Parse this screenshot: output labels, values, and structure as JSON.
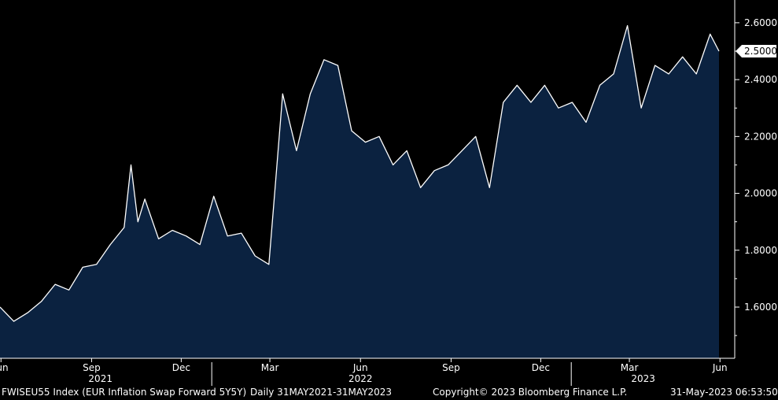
{
  "chart_data": {
    "type": "area",
    "title": "",
    "ylim": [
      1.42,
      2.68
    ],
    "y_ticks": [
      "1.6000",
      "1.8000",
      "2.0000",
      "2.2000",
      "2.4000",
      "2.6000"
    ],
    "last_value_label": "2.5000",
    "month_ticks": [
      "Jun",
      "Sep",
      "Dec",
      "Mar",
      "Jun",
      "Sep",
      "Dec",
      "Mar",
      "Jun"
    ],
    "year_labels": [
      "2021",
      "2022",
      "2023"
    ],
    "colors": {
      "area_fill": "#0b2240",
      "line": "#ffffff",
      "background": "#000000"
    },
    "grid": false,
    "series": [
      {
        "x": [
          "2021-05-31",
          "2021-06-14",
          "2021-06-28",
          "2021-07-12",
          "2021-07-26",
          "2021-08-09",
          "2021-08-23",
          "2021-09-06",
          "2021-09-20",
          "2021-10-04",
          "2021-10-11",
          "2021-10-18",
          "2021-10-25",
          "2021-11-08",
          "2021-11-22",
          "2021-12-06",
          "2021-12-20",
          "2022-01-03",
          "2022-01-17",
          "2022-01-31",
          "2022-02-14",
          "2022-02-28",
          "2022-03-07",
          "2022-03-14",
          "2022-03-28",
          "2022-04-11",
          "2022-04-25",
          "2022-05-09",
          "2022-05-23",
          "2022-06-06",
          "2022-06-20",
          "2022-07-04",
          "2022-07-18",
          "2022-08-01",
          "2022-08-15",
          "2022-08-29",
          "2022-09-12",
          "2022-09-26",
          "2022-10-10",
          "2022-10-24",
          "2022-11-07",
          "2022-11-21",
          "2022-12-05",
          "2022-12-19",
          "2023-01-02",
          "2023-01-16",
          "2023-01-30",
          "2023-02-13",
          "2023-02-27",
          "2023-03-13",
          "2023-03-27",
          "2023-04-10",
          "2023-04-24",
          "2023-05-08",
          "2023-05-22",
          "2023-05-31"
        ],
        "values": [
          1.6,
          1.55,
          1.58,
          1.62,
          1.68,
          1.66,
          1.74,
          1.75,
          1.82,
          1.88,
          2.1,
          1.9,
          1.98,
          1.84,
          1.87,
          1.85,
          1.82,
          1.99,
          1.85,
          1.86,
          1.78,
          1.75,
          2.05,
          2.35,
          2.15,
          2.35,
          2.47,
          2.45,
          2.22,
          2.18,
          2.2,
          2.1,
          2.15,
          2.02,
          2.08,
          2.1,
          2.15,
          2.2,
          2.02,
          2.32,
          2.38,
          2.32,
          2.38,
          2.3,
          2.32,
          2.25,
          2.38,
          2.42,
          2.59,
          2.3,
          2.45,
          2.42,
          2.48,
          2.42,
          2.56,
          2.5
        ]
      }
    ]
  },
  "footer": {
    "ticker_desc": "FWISEU55 Index (EUR Inflation Swap Forward 5Y5Y)",
    "range": "Daily 31MAY2021-31MAY2023",
    "copyright": "Copyright© 2023 Bloomberg Finance L.P.",
    "timestamp": "31-May-2023 06:53:50"
  }
}
